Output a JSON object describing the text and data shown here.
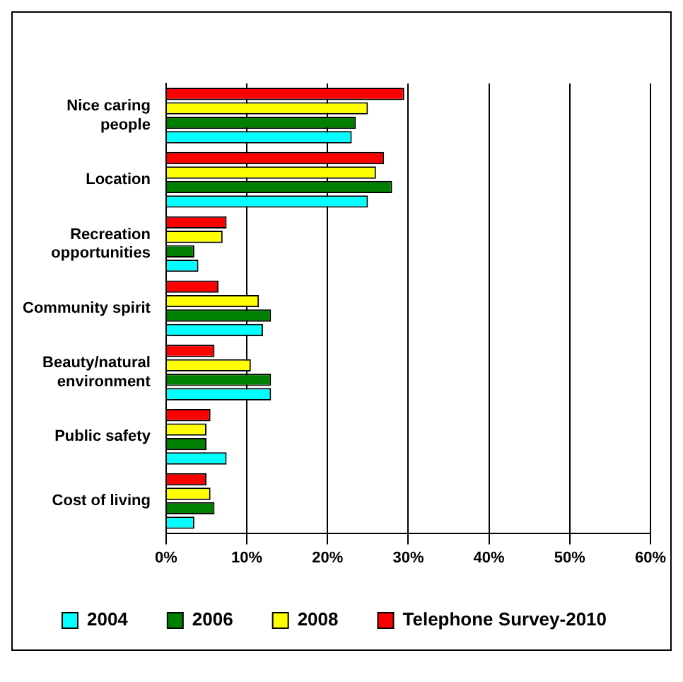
{
  "chart_data": {
    "type": "bar",
    "orientation": "horizontal",
    "categories": [
      "Nice caring people",
      "Location",
      "Recreation opportunities",
      "Community spirit",
      "Beauty/natural environment",
      "Public safety",
      "Cost of living"
    ],
    "series": [
      {
        "name": "2004",
        "color": "#00ffff",
        "values": [
          23,
          25,
          4,
          12,
          13,
          7.5,
          3.5
        ]
      },
      {
        "name": "2006",
        "color": "#008000",
        "values": [
          23.5,
          28,
          3.5,
          13,
          13,
          5,
          6
        ]
      },
      {
        "name": "2008",
        "color": "#ffff00",
        "values": [
          25,
          26,
          7,
          11.5,
          10.5,
          5,
          5.5
        ]
      },
      {
        "name": "Telephone Survey-2010",
        "color": "#ff0000",
        "values": [
          29.5,
          27,
          7.5,
          6.5,
          6,
          5.5,
          5
        ]
      }
    ],
    "xlim": [
      0,
      60
    ],
    "xticks": [
      {
        "value": 0,
        "label": "0%"
      },
      {
        "value": 10,
        "label": "10%"
      },
      {
        "value": 20,
        "label": "20%"
      },
      {
        "value": 30,
        "label": "30%"
      },
      {
        "value": 40,
        "label": "40%"
      },
      {
        "value": 50,
        "label": "50%"
      },
      {
        "value": 60,
        "label": "60%"
      }
    ],
    "grid": "x",
    "legend": "bottom"
  }
}
